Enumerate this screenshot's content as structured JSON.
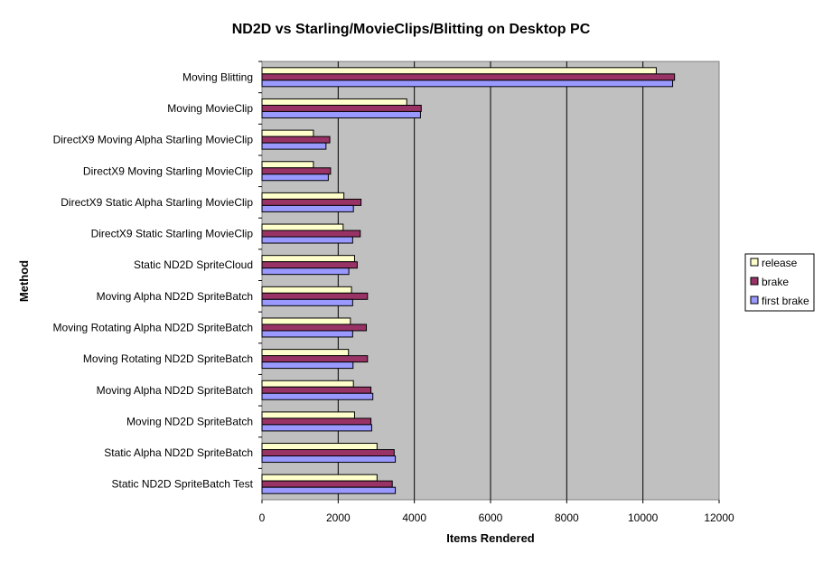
{
  "chart_data": {
    "type": "bar",
    "orientation": "horizontal",
    "title": "ND2D vs Starling/MovieClips/Blitting on Desktop PC",
    "xlabel": "Items Rendered",
    "ylabel": "Method",
    "xlim": [
      0,
      12000
    ],
    "xticks": [
      "0",
      "2000",
      "4000",
      "6000",
      "8000",
      "10000",
      "12000"
    ],
    "grid": true,
    "legend_position": "right",
    "categories": [
      "Moving Blitting",
      "Moving MovieClip",
      "DirectX9 Moving Alpha Starling MovieClip",
      "DirectX9 Moving Starling MovieClip",
      "DirectX9 Static Alpha Starling MovieClip",
      "DirectX9 Static Starling MovieClip",
      "Static ND2D SpriteCloud",
      "Moving Alpha ND2D SpriteBatch",
      "Moving Rotating Alpha ND2D SpriteBatch",
      "Moving Rotating ND2D SpriteBatch",
      "Moving Alpha ND2D SpriteBatch",
      "Moving ND2D SpriteBatch",
      "Static Alpha ND2D SpriteBatch",
      "Static ND2D SpriteBatch Test"
    ],
    "series": [
      {
        "name": "release",
        "color": "#ffffcc",
        "values": [
          10350,
          3800,
          1350,
          1350,
          2150,
          2130,
          2430,
          2350,
          2320,
          2270,
          2400,
          2430,
          3020,
          3020
        ]
      },
      {
        "name": "brake",
        "color": "#993366",
        "values": [
          10830,
          4180,
          1780,
          1800,
          2600,
          2580,
          2500,
          2770,
          2740,
          2770,
          2860,
          2860,
          3470,
          3420
        ]
      },
      {
        "name": "first brake",
        "color": "#9999ff",
        "values": [
          10780,
          4160,
          1680,
          1740,
          2400,
          2380,
          2280,
          2380,
          2380,
          2390,
          2910,
          2880,
          3500,
          3500
        ]
      }
    ]
  }
}
